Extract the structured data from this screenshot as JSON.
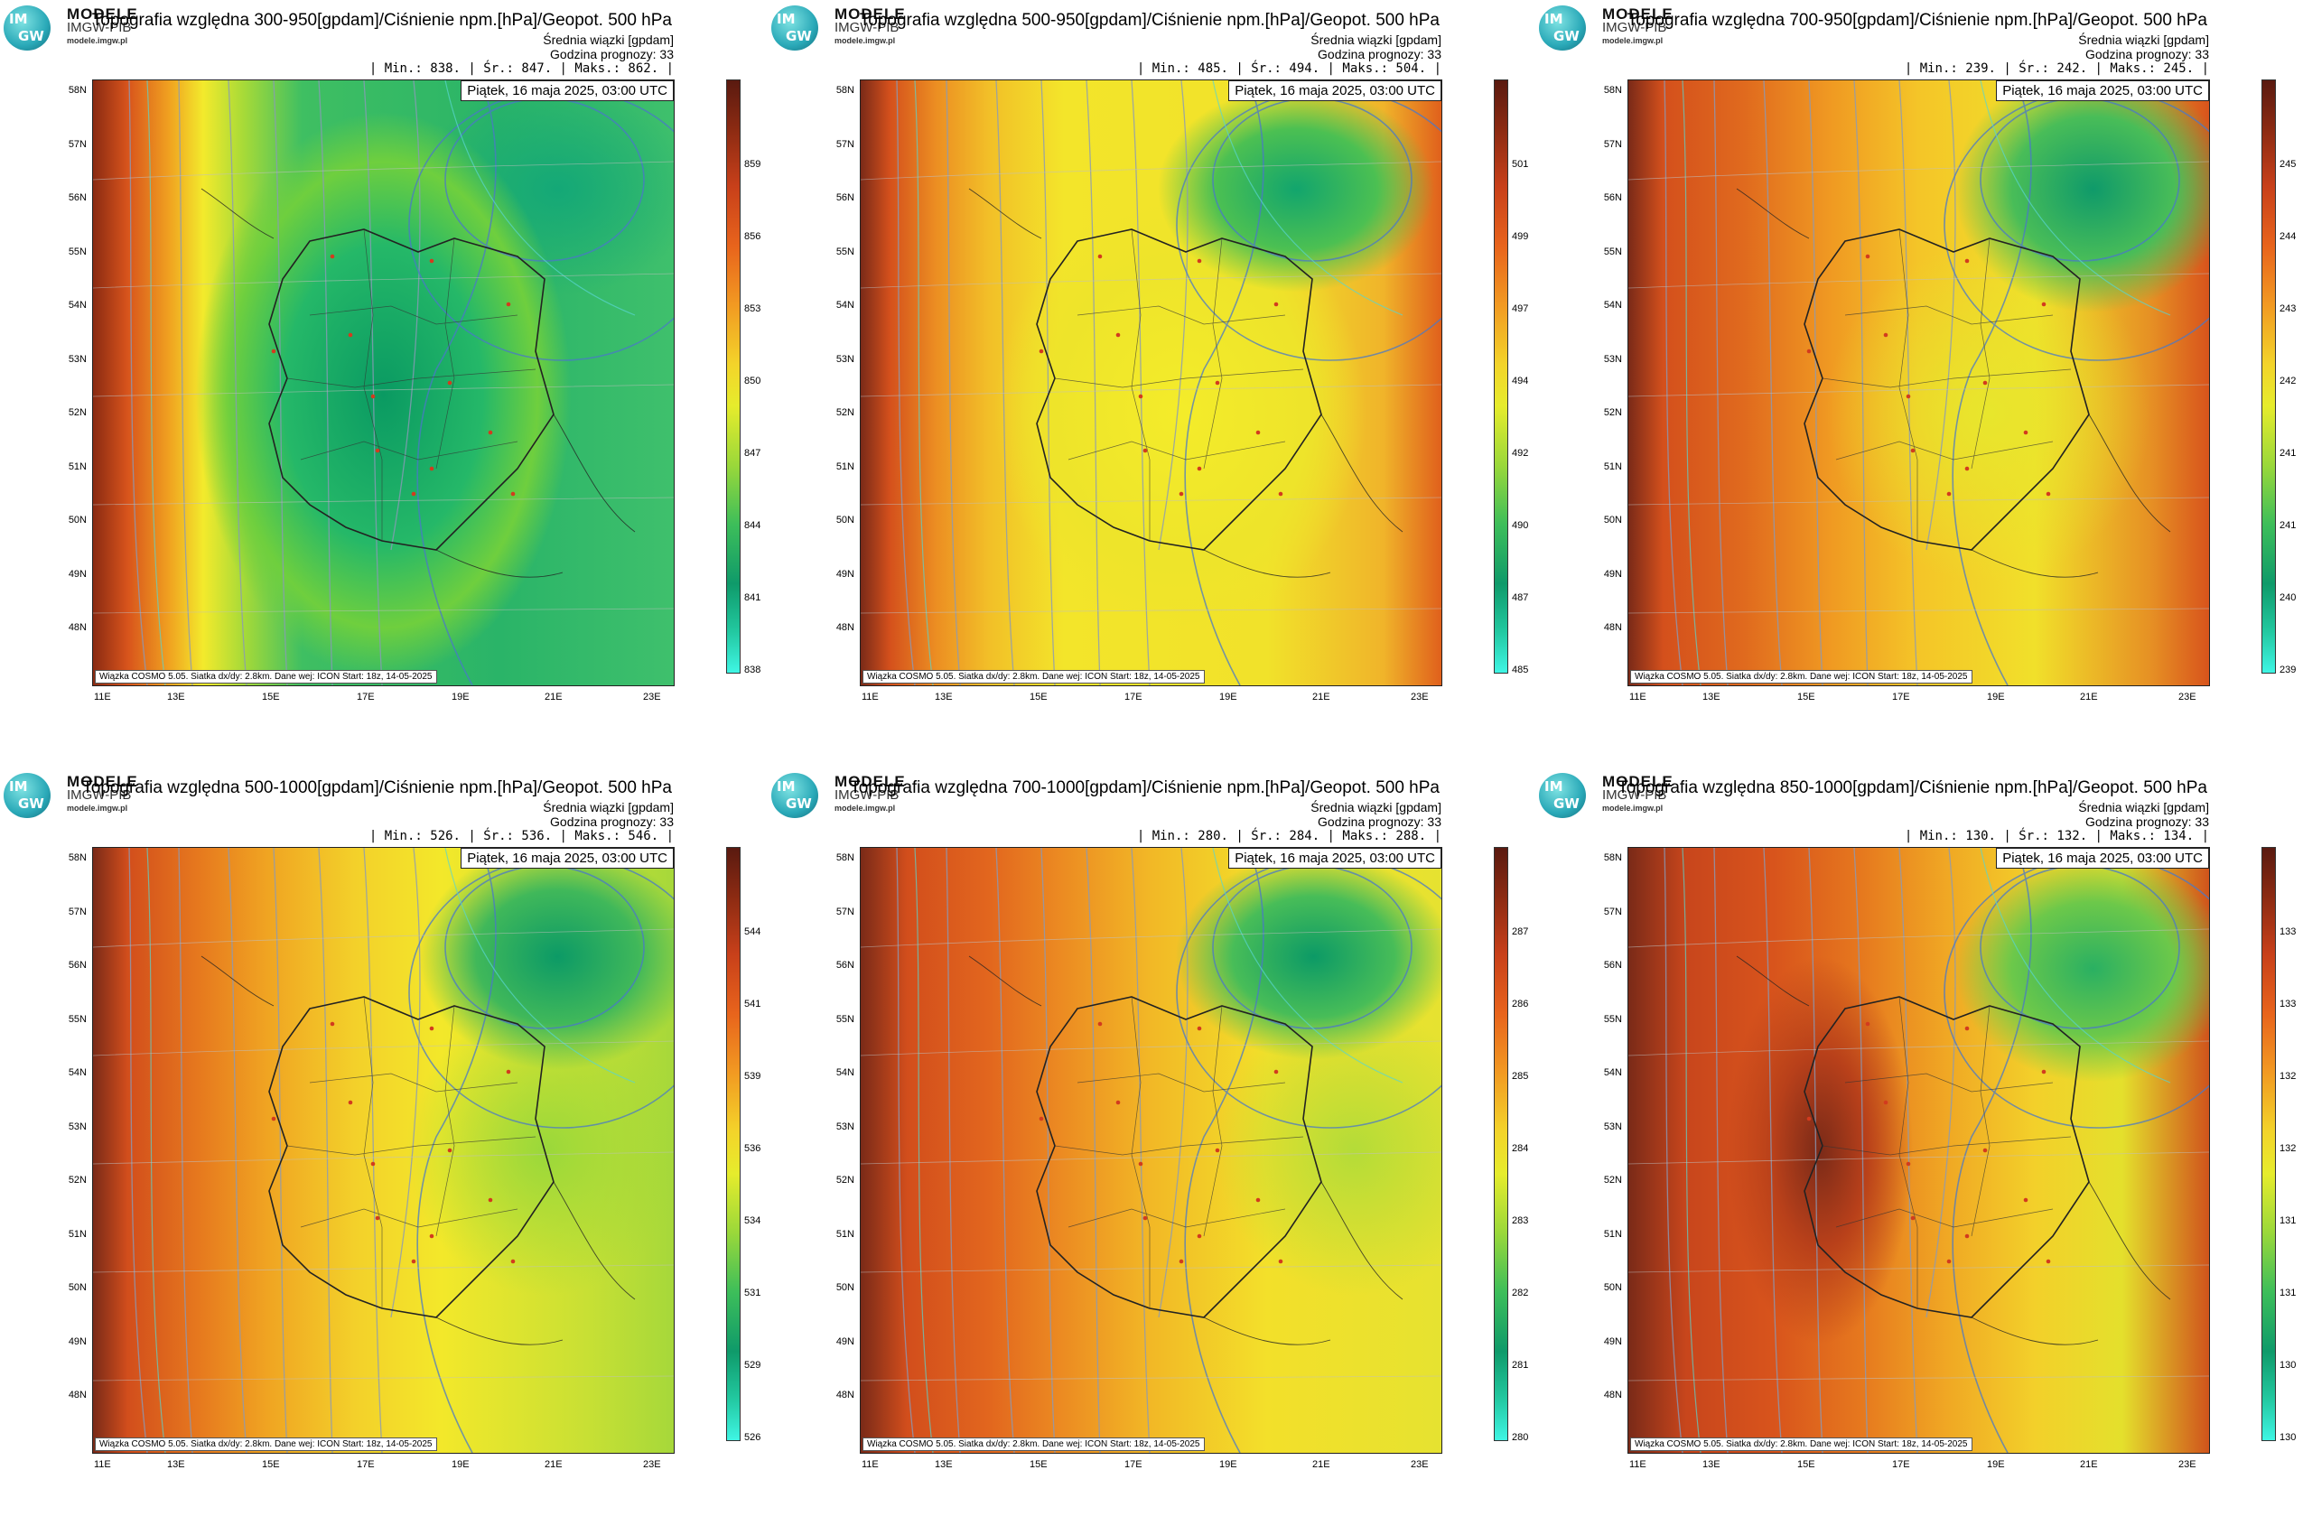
{
  "logo": {
    "line1": "MODELE",
    "line2": "IMGW-PIB",
    "site": "modele.imgw.pl",
    "mark_top": "IM",
    "mark_bottom": "GW"
  },
  "common": {
    "subtitle": "Średnia wiązki [gpdam]",
    "forecast_hour": "Godzina prognozy: 33",
    "date": "Piątek, 16 maja 2025, 03:00 UTC",
    "footnote": "Wiązka COSMO 5.05. Siatka dx/dy: 2.8km. Dane wej: ICON Start: 18z, 14-05-2025",
    "lat_labels": [
      "58N",
      "57N",
      "56N",
      "55N",
      "54N",
      "53N",
      "52N",
      "51N",
      "50N",
      "49N",
      "48N"
    ],
    "lon_labels": [
      "11E",
      "13E",
      "15E",
      "17E",
      "19E",
      "21E",
      "23E"
    ]
  },
  "colors": {
    "green_dark": "#0a9a62",
    "green": "#2fbf6a",
    "lime": "#9ad83a",
    "yellow": "#f3ee2a",
    "orange": "#f2a321",
    "red_orange": "#e0561c",
    "dark_red": "#7a2a1a",
    "cyan": "#3ff5e4"
  },
  "panels": [
    {
      "title": "Topografia względna 300-950[gpdam]/Ciśnienie npm.[hPa]/Geopot. 500 hPa",
      "stats": "| Min.:    838. | Śr.:     847. | Maks.:    862. |",
      "colorbar": [
        "859",
        "856",
        "853",
        "850",
        "847",
        "844",
        "841",
        "838"
      ]
    },
    {
      "title": "Topografia względna 500-950[gpdam]/Ciśnienie npm.[hPa]/Geopot. 500 hPa",
      "stats": "| Min.:    485. | Śr.:     494. | Maks.:    504. |",
      "colorbar": [
        "501",
        "499",
        "497",
        "494",
        "492",
        "490",
        "487",
        "485"
      ]
    },
    {
      "title": "Topografia względna 700-950[gpdam]/Ciśnienie npm.[hPa]/Geopot. 500 hPa",
      "stats": "| Min.:    239. | Śr.:     242. | Maks.:    245. |",
      "colorbar": [
        "245",
        "244",
        "243",
        "242",
        "241",
        "241",
        "240",
        "239"
      ]
    },
    {
      "title": "Topografia względna 500-1000[gpdam]/Ciśnienie npm.[hPa]/Geopot. 500 hPa",
      "stats": "| Min.:    526. | Śr.:     536. | Maks.:    546. |",
      "colorbar": [
        "544",
        "541",
        "539",
        "536",
        "534",
        "531",
        "529",
        "526"
      ]
    },
    {
      "title": "Topografia względna 700-1000[gpdam]/Ciśnienie npm.[hPa]/Geopot. 500 hPa",
      "stats": "| Min.:    280. | Śr.:     284. | Maks.:    288. |",
      "colorbar": [
        "287",
        "286",
        "285",
        "284",
        "283",
        "282",
        "281",
        "280"
      ]
    },
    {
      "title": "Topografia względna 850-1000[gpdam]/Ciśnienie npm.[hPa]/Geopot. 500 hPa",
      "stats": "| Min.:    130. | Śr.:     132. | Maks.:    134. |",
      "colorbar": [
        "133",
        "133",
        "132",
        "132",
        "131",
        "131",
        "130",
        "130"
      ]
    }
  ]
}
